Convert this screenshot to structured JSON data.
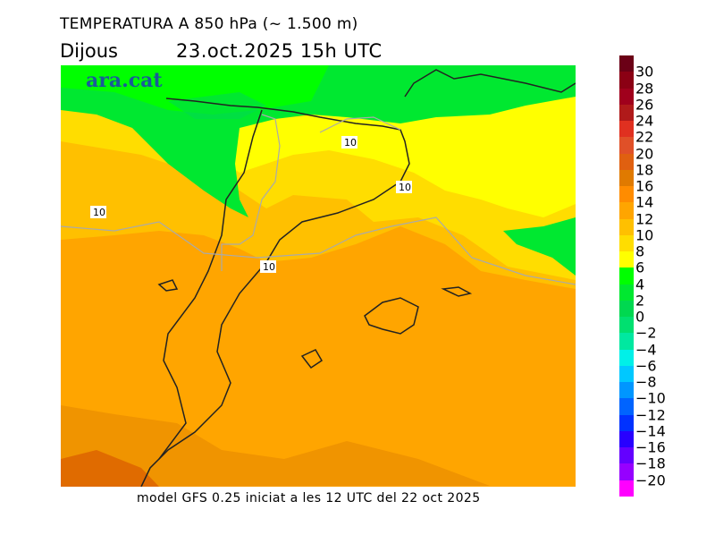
{
  "header": {
    "title": "TEMPERATURA A 850 hPa (~ 1.500 m)",
    "day": "Dijous",
    "date": "23.oct.2025  15h UTC"
  },
  "logo": "ara.cat",
  "footer": "model GFS 0.25 iniciat a les 12 UTC del 22 oct 2025",
  "map": {
    "contour_labels": [
      "10",
      "10",
      "10",
      "10"
    ],
    "units": "°C"
  },
  "colorbar": {
    "labels": [
      "30",
      "28",
      "26",
      "24",
      "22",
      "20",
      "18",
      "16",
      "14",
      "12",
      "10",
      "8",
      "6",
      "4",
      "2",
      "0",
      "−2",
      "−4",
      "−6",
      "−8",
      "−10",
      "−12",
      "−14",
      "−16",
      "−18",
      "−20"
    ],
    "colors": [
      "#6b0016",
      "#8b0014",
      "#a0001c",
      "#b01a1a",
      "#e03020",
      "#e05028",
      "#e06010",
      "#e07a00",
      "#ff8c00",
      "#ffa500",
      "#ffc000",
      "#ffdd00",
      "#ffff00",
      "#00ff00",
      "#00e830",
      "#00d850",
      "#00e070",
      "#00e8a0",
      "#00f0e8",
      "#00c8ff",
      "#0096ff",
      "#0064ff",
      "#0032ff",
      "#2800ff",
      "#6400ff",
      "#9600ff",
      "#ff00ff"
    ]
  }
}
